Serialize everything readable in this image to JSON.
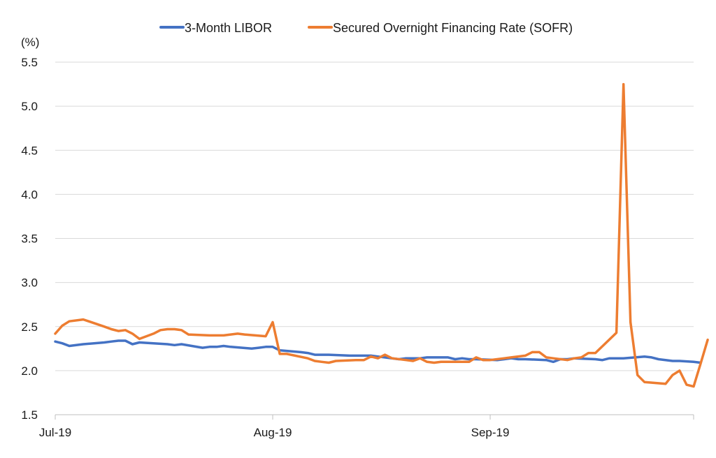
{
  "chart_data": {
    "type": "line",
    "unit_label": "(%)",
    "ylim": [
      1.5,
      5.5
    ],
    "yticks": [
      "1.5",
      "2.0",
      "2.5",
      "3.0",
      "3.5",
      "4.0",
      "4.5",
      "5.0",
      "5.5"
    ],
    "x_start": "2019-07-01",
    "x_end": "2019-09-30",
    "xticks": [
      {
        "date": "2019-07-01",
        "label": "Jul-19"
      },
      {
        "date": "2019-08-01",
        "label": "Aug-19"
      },
      {
        "date": "2019-09-01",
        "label": "Sep-19"
      }
    ],
    "grid": true,
    "legend_position": "top",
    "series": [
      {
        "name": "3-Month LIBOR",
        "color": "#4472C4",
        "points": [
          [
            "2019-07-01",
            2.33
          ],
          [
            "2019-07-02",
            2.31
          ],
          [
            "2019-07-03",
            2.28
          ],
          [
            "2019-07-05",
            2.3
          ],
          [
            "2019-07-08",
            2.32
          ],
          [
            "2019-07-09",
            2.33
          ],
          [
            "2019-07-10",
            2.34
          ],
          [
            "2019-07-11",
            2.34
          ],
          [
            "2019-07-12",
            2.3
          ],
          [
            "2019-07-13",
            2.32
          ],
          [
            "2019-07-15",
            2.31
          ],
          [
            "2019-07-17",
            2.3
          ],
          [
            "2019-07-18",
            2.29
          ],
          [
            "2019-07-19",
            2.3
          ],
          [
            "2019-07-22",
            2.26
          ],
          [
            "2019-07-23",
            2.27
          ],
          [
            "2019-07-24",
            2.27
          ],
          [
            "2019-07-25",
            2.28
          ],
          [
            "2019-07-26",
            2.27
          ],
          [
            "2019-07-29",
            2.25
          ],
          [
            "2019-07-30",
            2.26
          ],
          [
            "2019-07-31",
            2.27
          ],
          [
            "2019-08-01",
            2.27
          ],
          [
            "2019-08-02",
            2.23
          ],
          [
            "2019-08-05",
            2.21
          ],
          [
            "2019-08-06",
            2.2
          ],
          [
            "2019-08-07",
            2.18
          ],
          [
            "2019-08-08",
            2.18
          ],
          [
            "2019-08-09",
            2.18
          ],
          [
            "2019-08-12",
            2.17
          ],
          [
            "2019-08-13",
            2.17
          ],
          [
            "2019-08-14",
            2.17
          ],
          [
            "2019-08-15",
            2.17
          ],
          [
            "2019-08-16",
            2.16
          ],
          [
            "2019-08-19",
            2.13
          ],
          [
            "2019-08-20",
            2.14
          ],
          [
            "2019-08-21",
            2.14
          ],
          [
            "2019-08-22",
            2.14
          ],
          [
            "2019-08-23",
            2.15
          ],
          [
            "2019-08-26",
            2.15
          ],
          [
            "2019-08-27",
            2.13
          ],
          [
            "2019-08-28",
            2.14
          ],
          [
            "2019-08-29",
            2.13
          ],
          [
            "2019-08-30",
            2.13
          ],
          [
            "2019-09-02",
            2.12
          ],
          [
            "2019-09-03",
            2.13
          ],
          [
            "2019-09-04",
            2.14
          ],
          [
            "2019-09-05",
            2.13
          ],
          [
            "2019-09-06",
            2.13
          ],
          [
            "2019-09-09",
            2.12
          ],
          [
            "2019-09-10",
            2.1
          ],
          [
            "2019-09-11",
            2.13
          ],
          [
            "2019-09-12",
            2.13
          ],
          [
            "2019-09-13",
            2.14
          ],
          [
            "2019-09-16",
            2.13
          ],
          [
            "2019-09-17",
            2.12
          ],
          [
            "2019-09-18",
            2.14
          ],
          [
            "2019-09-19",
            2.14
          ],
          [
            "2019-09-20",
            2.14
          ],
          [
            "2019-09-23",
            2.16
          ],
          [
            "2019-09-24",
            2.15
          ],
          [
            "2019-09-25",
            2.13
          ],
          [
            "2019-09-26",
            2.12
          ],
          [
            "2019-09-27",
            2.11
          ],
          [
            "2019-09-28",
            2.11
          ],
          [
            "2019-09-30",
            2.1
          ],
          [
            "2019-10-01",
            2.09
          ]
        ]
      },
      {
        "name": "Secured Overnight Financing Rate (SOFR)",
        "color": "#ED7D31",
        "points": [
          [
            "2019-07-01",
            2.42
          ],
          [
            "2019-07-02",
            2.51
          ],
          [
            "2019-07-03",
            2.56
          ],
          [
            "2019-07-05",
            2.58
          ],
          [
            "2019-07-08",
            2.5
          ],
          [
            "2019-07-09",
            2.47
          ],
          [
            "2019-07-10",
            2.45
          ],
          [
            "2019-07-11",
            2.46
          ],
          [
            "2019-07-12",
            2.42
          ],
          [
            "2019-07-13",
            2.36
          ],
          [
            "2019-07-15",
            2.42
          ],
          [
            "2019-07-16",
            2.46
          ],
          [
            "2019-07-17",
            2.47
          ],
          [
            "2019-07-18",
            2.47
          ],
          [
            "2019-07-19",
            2.46
          ],
          [
            "2019-07-20",
            2.41
          ],
          [
            "2019-07-23",
            2.4
          ],
          [
            "2019-07-25",
            2.4
          ],
          [
            "2019-07-26",
            2.41
          ],
          [
            "2019-07-27",
            2.42
          ],
          [
            "2019-07-28",
            2.41
          ],
          [
            "2019-07-31",
            2.39
          ],
          [
            "2019-08-01",
            2.55
          ],
          [
            "2019-08-02",
            2.19
          ],
          [
            "2019-08-03",
            2.19
          ],
          [
            "2019-08-06",
            2.14
          ],
          [
            "2019-08-07",
            2.11
          ],
          [
            "2019-08-08",
            2.1
          ],
          [
            "2019-08-09",
            2.09
          ],
          [
            "2019-08-10",
            2.11
          ],
          [
            "2019-08-13",
            2.12
          ],
          [
            "2019-08-14",
            2.12
          ],
          [
            "2019-08-15",
            2.16
          ],
          [
            "2019-08-16",
            2.14
          ],
          [
            "2019-08-17",
            2.18
          ],
          [
            "2019-08-18",
            2.14
          ],
          [
            "2019-08-20",
            2.12
          ],
          [
            "2019-08-21",
            2.11
          ],
          [
            "2019-08-22",
            2.14
          ],
          [
            "2019-08-23",
            2.1
          ],
          [
            "2019-08-24",
            2.09
          ],
          [
            "2019-08-25",
            2.1
          ],
          [
            "2019-08-27",
            2.1
          ],
          [
            "2019-08-29",
            2.1
          ],
          [
            "2019-08-30",
            2.15
          ],
          [
            "2019-08-31",
            2.12
          ],
          [
            "2019-09-01",
            2.12
          ],
          [
            "2019-09-03",
            2.14
          ],
          [
            "2019-09-04",
            2.15
          ],
          [
            "2019-09-06",
            2.17
          ],
          [
            "2019-09-07",
            2.21
          ],
          [
            "2019-09-08",
            2.21
          ],
          [
            "2019-09-09",
            2.15
          ],
          [
            "2019-09-10",
            2.14
          ],
          [
            "2019-09-12",
            2.12
          ],
          [
            "2019-09-13",
            2.14
          ],
          [
            "2019-09-14",
            2.15
          ],
          [
            "2019-09-15",
            2.2
          ],
          [
            "2019-09-16",
            2.2
          ],
          [
            "2019-09-19",
            2.43
          ],
          [
            "2019-09-20",
            5.25
          ],
          [
            "2019-09-21",
            2.55
          ],
          [
            "2019-09-22",
            1.95
          ],
          [
            "2019-09-23",
            1.87
          ],
          [
            "2019-09-26",
            1.85
          ],
          [
            "2019-09-27",
            1.95
          ],
          [
            "2019-09-28",
            2.0
          ],
          [
            "2019-09-29",
            1.84
          ],
          [
            "2019-09-30",
            1.82
          ],
          [
            "2019-10-01",
            2.08
          ],
          [
            "2019-10-02",
            2.35
          ]
        ]
      }
    ]
  }
}
